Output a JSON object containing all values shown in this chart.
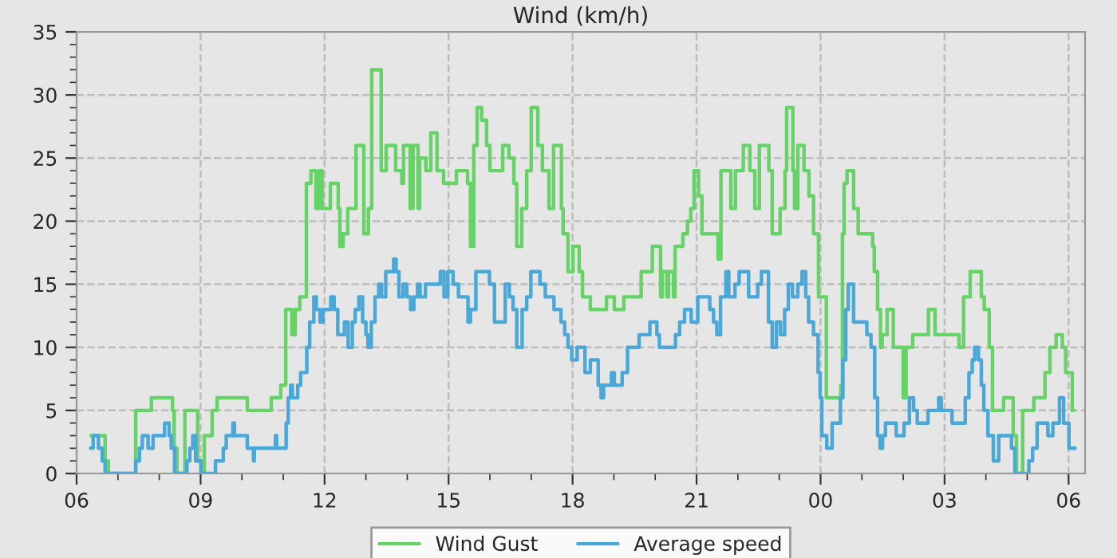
{
  "chart_data": {
    "type": "step",
    "title": "Wind (km/h)",
    "xlim": [
      6,
      30.4
    ],
    "ylim": [
      0,
      35
    ],
    "xticks": [
      {
        "value": 6,
        "label": "06"
      },
      {
        "value": 7,
        "label": null
      },
      {
        "value": 8,
        "label": null
      },
      {
        "value": 9,
        "label": "09"
      },
      {
        "value": 10,
        "label": null
      },
      {
        "value": 11,
        "label": null
      },
      {
        "value": 12,
        "label": "12"
      },
      {
        "value": 13,
        "label": null
      },
      {
        "value": 14,
        "label": null
      },
      {
        "value": 15,
        "label": "15"
      },
      {
        "value": 16,
        "label": null
      },
      {
        "value": 17,
        "label": null
      },
      {
        "value": 18,
        "label": "18"
      },
      {
        "value": 19,
        "label": null
      },
      {
        "value": 20,
        "label": null
      },
      {
        "value": 21,
        "label": "21"
      },
      {
        "value": 22,
        "label": null
      },
      {
        "value": 23,
        "label": null
      },
      {
        "value": 24,
        "label": "00"
      },
      {
        "value": 25,
        "label": null
      },
      {
        "value": 26,
        "label": null
      },
      {
        "value": 27,
        "label": "03"
      },
      {
        "value": 28,
        "label": null
      },
      {
        "value": 29,
        "label": null
      },
      {
        "value": 30,
        "label": "06"
      }
    ],
    "yticks": [
      0,
      {
        "value": 1,
        "label": null
      },
      {
        "value": 2,
        "label": null
      },
      {
        "value": 3,
        "label": null
      },
      {
        "value": 4,
        "label": null
      },
      5,
      {
        "value": 6,
        "label": null
      },
      {
        "value": 7,
        "label": null
      },
      {
        "value": 8,
        "label": null
      },
      {
        "value": 9,
        "label": null
      },
      10,
      {
        "value": 11,
        "label": null
      },
      {
        "value": 12,
        "label": null
      },
      {
        "value": 13,
        "label": null
      },
      {
        "value": 14,
        "label": null
      },
      15,
      {
        "value": 16,
        "label": null
      },
      {
        "value": 17,
        "label": null
      },
      {
        "value": 18,
        "label": null
      },
      {
        "value": 19,
        "label": null
      },
      20,
      {
        "value": 21,
        "label": null
      },
      {
        "value": 22,
        "label": null
      },
      {
        "value": 23,
        "label": null
      },
      {
        "value": 24,
        "label": null
      },
      25,
      {
        "value": 26,
        "label": null
      },
      {
        "value": 27,
        "label": null
      },
      {
        "value": 28,
        "label": null
      },
      {
        "value": 29,
        "label": null
      },
      30,
      {
        "value": 31,
        "label": null
      },
      {
        "value": 32,
        "label": null
      },
      {
        "value": 33,
        "label": null
      },
      {
        "value": 34,
        "label": null
      },
      35
    ],
    "grid": true,
    "legend": "bottom",
    "marker": "none",
    "line_style": "solid",
    "series": [
      {
        "name": "Wind Gust",
        "color": "#66d366",
        "x": [
          6.35,
          6.69,
          6.77,
          7.43,
          7.81,
          8.32,
          8.36,
          8.43,
          8.62,
          8.93,
          9.01,
          9.09,
          9.28,
          9.4,
          10.13,
          10.71,
          10.94,
          11.06,
          11.21,
          11.29,
          11.4,
          11.56,
          11.67,
          11.79,
          11.87,
          11.94,
          12.14,
          12.33,
          12.37,
          12.45,
          12.56,
          12.76,
          12.95,
          13.06,
          13.14,
          13.37,
          13.49,
          13.72,
          13.87,
          13.91,
          14.07,
          14.14,
          14.26,
          14.3,
          14.45,
          14.57,
          14.72,
          14.88,
          15.19,
          15.46,
          15.53,
          15.61,
          15.69,
          15.8,
          15.92,
          16.0,
          16.31,
          16.46,
          16.58,
          16.65,
          16.77,
          16.89,
          17.0,
          17.16,
          17.27,
          17.43,
          17.54,
          17.73,
          17.77,
          17.89,
          18.01,
          18.16,
          18.24,
          18.43,
          18.82,
          19.01,
          19.24,
          19.66,
          19.93,
          20.13,
          20.17,
          20.28,
          20.32,
          20.44,
          20.48,
          20.67,
          20.78,
          20.86,
          20.94,
          21.05,
          21.13,
          21.52,
          21.59,
          21.83,
          21.94,
          22.13,
          22.29,
          22.41,
          22.52,
          22.75,
          22.83,
          23.02,
          23.14,
          23.18,
          23.33,
          23.37,
          23.45,
          23.6,
          23.72,
          23.83,
          23.95,
          24.14,
          24.49,
          24.53,
          24.57,
          24.64,
          24.8,
          24.91,
          25.26,
          25.3,
          25.38,
          25.45,
          25.49,
          25.61,
          25.76,
          26.0,
          26.07,
          26.23,
          26.61,
          26.77,
          27.35,
          27.46,
          27.62,
          27.89,
          27.96,
          28.08,
          28.16,
          28.43,
          28.66,
          28.74,
          28.89,
          29.16,
          29.43,
          29.55,
          29.7,
          29.85,
          29.93,
          30.09,
          30.13
        ],
        "values": [
          3,
          1,
          0,
          5,
          6,
          5,
          2,
          0,
          5,
          1,
          0,
          3,
          5,
          6,
          5,
          6,
          7,
          13,
          11,
          13,
          14,
          23,
          24,
          21,
          24,
          21,
          23,
          21,
          18,
          19,
          21,
          26,
          19,
          21,
          32,
          24,
          26,
          24,
          23,
          26,
          21,
          26,
          21,
          25,
          24,
          27,
          24,
          23,
          24,
          23,
          18,
          26,
          29,
          28,
          26,
          24,
          26,
          25,
          23,
          18,
          21,
          24,
          29,
          26,
          24,
          21,
          26,
          21,
          19,
          16,
          18,
          16,
          14,
          13,
          14,
          13,
          14,
          16,
          18,
          14,
          16,
          14,
          16,
          14,
          18,
          19,
          20,
          21,
          24,
          22,
          19,
          17,
          24,
          21,
          24,
          26,
          24,
          21,
          26,
          24,
          19,
          21,
          24,
          29,
          24,
          21,
          26,
          24,
          22,
          19,
          14,
          6,
          7,
          19,
          23,
          24,
          21,
          19,
          18,
          16,
          13,
          10,
          11,
          13,
          10,
          6,
          10,
          11,
          13,
          11,
          10,
          14,
          16,
          14,
          13,
          10,
          5,
          6,
          3,
          0,
          5,
          6,
          8,
          10,
          11,
          10,
          8,
          5,
          5
        ]
      },
      {
        "name": "Average speed",
        "color": "#4aa8d8",
        "x": [
          6.34,
          6.4,
          6.53,
          6.62,
          6.69,
          7.43,
          7.52,
          7.59,
          7.73,
          7.85,
          8.13,
          8.24,
          8.29,
          8.37,
          8.67,
          8.74,
          8.81,
          8.88,
          9.01,
          9.36,
          9.55,
          9.62,
          9.78,
          9.82,
          10.13,
          10.28,
          10.3,
          10.81,
          10.84,
          11.07,
          11.12,
          11.18,
          11.22,
          11.35,
          11.42,
          11.57,
          11.64,
          11.74,
          11.8,
          11.89,
          11.96,
          12.15,
          12.23,
          12.32,
          12.41,
          12.48,
          12.57,
          12.67,
          12.74,
          12.83,
          12.92,
          13.0,
          13.05,
          13.13,
          13.22,
          13.31,
          13.38,
          13.48,
          13.67,
          13.73,
          13.8,
          13.9,
          13.99,
          14.08,
          14.16,
          14.25,
          14.31,
          14.44,
          14.8,
          14.89,
          14.98,
          15.11,
          15.24,
          15.47,
          15.53,
          15.66,
          15.99,
          16.11,
          16.37,
          16.47,
          16.56,
          16.65,
          16.78,
          16.89,
          16.99,
          17.21,
          17.34,
          17.55,
          17.72,
          17.81,
          17.89,
          17.98,
          18.11,
          18.3,
          18.43,
          18.62,
          18.69,
          18.75,
          18.94,
          19.01,
          19.2,
          19.33,
          19.61,
          19.87,
          20.04,
          20.1,
          20.49,
          20.59,
          20.71,
          20.87,
          21.03,
          21.32,
          21.41,
          21.49,
          21.58,
          21.71,
          21.78,
          21.93,
          22.03,
          22.26,
          22.48,
          22.57,
          22.74,
          22.83,
          22.93,
          23.03,
          23.13,
          23.22,
          23.32,
          23.45,
          23.55,
          23.64,
          23.71,
          23.83,
          23.94,
          23.99,
          24.03,
          24.15,
          24.28,
          24.48,
          24.54,
          24.61,
          24.67,
          24.8,
          25.12,
          25.22,
          25.31,
          25.38,
          25.44,
          25.5,
          25.57,
          25.83,
          26.02,
          26.15,
          26.25,
          26.34,
          26.6,
          26.86,
          26.92,
          27.18,
          27.5,
          27.59,
          27.67,
          27.73,
          27.82,
          27.89,
          27.95,
          28.05,
          28.18,
          28.31,
          28.62,
          28.7,
          29.04,
          29.13,
          29.24,
          29.5,
          29.62,
          29.78,
          29.88,
          30.01,
          30.16
        ],
        "values": [
          2,
          3,
          2,
          1,
          0,
          1,
          2,
          3,
          2,
          3,
          4,
          3,
          2,
          0,
          1,
          2,
          3,
          1,
          0,
          1,
          2,
          3,
          4,
          3,
          2,
          1,
          2,
          3,
          2,
          4,
          6,
          7,
          6,
          7,
          8,
          10,
          12,
          14,
          13,
          12,
          13,
          14,
          13,
          11,
          11,
          12,
          10,
          12,
          13,
          14,
          12,
          11,
          10,
          12,
          14,
          15,
          14,
          16,
          17,
          16,
          14,
          15,
          14,
          13,
          14,
          15,
          14,
          15,
          16,
          14,
          16,
          15,
          14,
          12,
          13,
          16,
          15,
          12,
          15,
          14,
          13,
          10,
          13,
          14,
          16,
          15,
          14,
          13,
          12,
          11,
          10,
          9,
          10,
          8,
          9,
          7,
          6,
          7,
          8,
          7,
          8,
          10,
          11,
          12,
          11,
          10,
          11,
          12,
          13,
          12,
          14,
          13,
          12,
          11,
          14,
          16,
          14,
          15,
          16,
          14,
          15,
          16,
          12,
          10,
          12,
          11,
          13,
          15,
          14,
          15,
          16,
          14,
          12,
          11,
          8,
          6,
          3,
          2,
          4,
          6,
          9,
          13,
          15,
          12,
          11,
          10,
          6,
          3,
          2,
          3,
          4,
          3,
          4,
          6,
          5,
          4,
          5,
          6,
          5,
          4,
          6,
          8,
          9,
          10,
          9,
          7,
          5,
          3,
          1,
          3,
          2,
          0,
          1,
          2,
          4,
          3,
          4,
          6,
          4,
          2,
          2
        ]
      }
    ]
  }
}
